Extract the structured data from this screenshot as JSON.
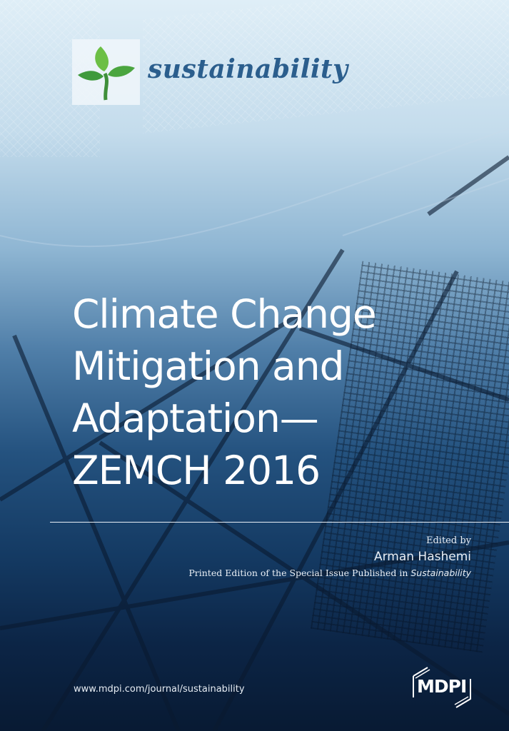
{
  "journal": {
    "name": "sustainability",
    "logo_icon": "sprout-icon",
    "brand_color": "#2b5e8d"
  },
  "book": {
    "title_lines": [
      "Climate Change",
      "Mitigation and",
      "Adaptation—",
      "ZEMCH 2016"
    ],
    "edited_by_label": "Edited by",
    "editor": "Arman Hashemi",
    "printed_edition_prefix": "Printed Edition of the Special Issue Published in",
    "printed_edition_journal": "Sustainability"
  },
  "footer": {
    "url": "www.mdpi.com/journal/sustainability",
    "publisher": "MDPI"
  }
}
